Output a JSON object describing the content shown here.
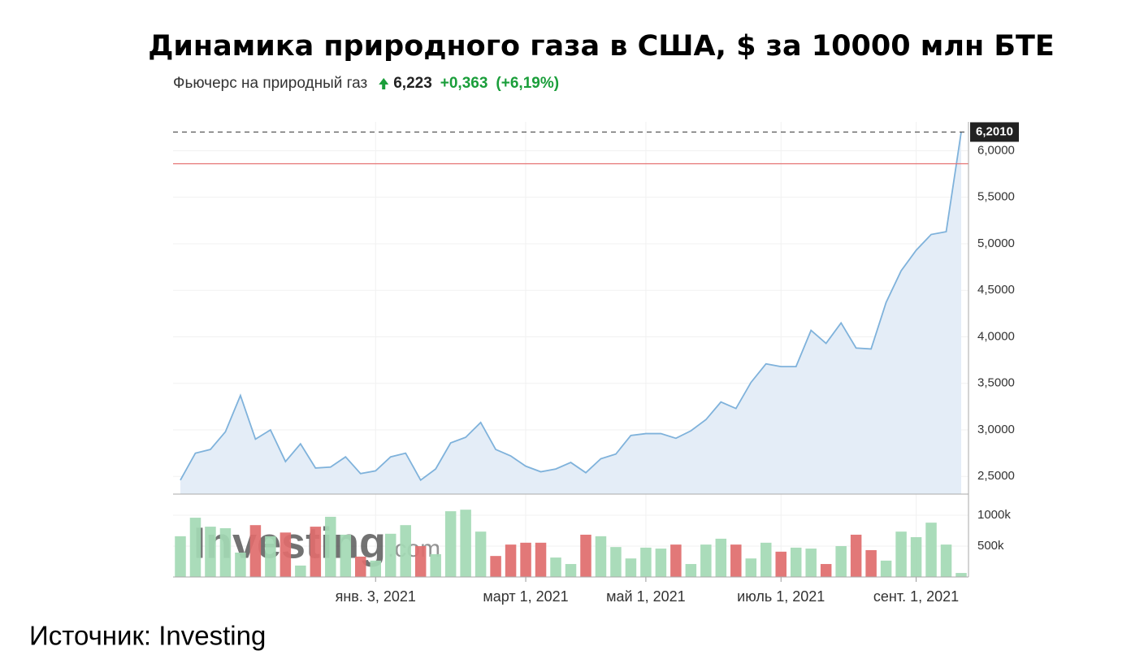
{
  "chart_data": {
    "type": "line",
    "title": "Динамика природного газа в США, $ за 10000 млн БТЕ",
    "quote": {
      "instrument": "Фьючерс на природный газ",
      "price": "6,223",
      "change": "+0,363",
      "change_pct": "(+6,19%)"
    },
    "categories": [
      null,
      null,
      null,
      null,
      null,
      null,
      null,
      null,
      null,
      null,
      null,
      null,
      null,
      "янв. 3, 2021",
      null,
      null,
      null,
      null,
      null,
      null,
      null,
      null,
      null,
      "март 1, 2021",
      null,
      null,
      null,
      null,
      null,
      null,
      null,
      "май 1, 2021",
      null,
      null,
      null,
      null,
      null,
      null,
      null,
      null,
      "июль 1, 2021",
      null,
      null,
      null,
      null,
      null,
      null,
      null,
      null,
      "сент. 1, 2021",
      null,
      null,
      null
    ],
    "series": [
      {
        "color": "#7fb2db",
        "fill": "#e4edf7",
        "values": [
          2.46,
          2.75,
          2.79,
          2.98,
          3.37,
          2.9,
          3.0,
          2.66,
          2.85,
          2.59,
          2.6,
          2.71,
          2.53,
          2.56,
          2.71,
          2.75,
          2.46,
          2.58,
          2.86,
          2.92,
          3.08,
          2.79,
          2.72,
          2.61,
          2.55,
          2.58,
          2.65,
          2.54,
          2.69,
          2.74,
          2.94,
          2.96,
          2.96,
          2.91,
          2.99,
          3.11,
          3.3,
          3.23,
          3.51,
          3.71,
          3.68,
          3.68,
          4.07,
          3.93,
          4.15,
          3.88,
          3.87,
          4.37,
          4.71,
          4.93,
          5.1,
          5.13,
          6.2
        ]
      }
    ],
    "ylim": [
      2.31,
      6.31
    ],
    "yticks": [
      {
        "value": 2.5,
        "label": "2,5000"
      },
      {
        "value": 3,
        "label": "3,0000"
      },
      {
        "value": 3.5,
        "label": "3,5000"
      },
      {
        "value": 4,
        "label": "4,0000"
      },
      {
        "value": 4.5,
        "label": "4,5000"
      },
      {
        "value": 5,
        "label": "5,0000"
      },
      {
        "value": 5.5,
        "label": "5,5000"
      },
      {
        "value": 6,
        "label": "6,0000"
      }
    ],
    "last_value": {
      "value": 6.201,
      "label": "6,2010"
    },
    "reference_line": {
      "value": 5.86,
      "color": "#e57373"
    },
    "grid": true,
    "watermark": [
      "Investing",
      ".com"
    ],
    "volume": {
      "type": "bar",
      "values": [
        660000,
        960000,
        815000,
        790000,
        395000,
        840000,
        660000,
        720000,
        185000,
        815000,
        975000,
        685000,
        330000,
        265000,
        700000,
        840000,
        500000,
        370000,
        1065000,
        1090000,
        735000,
        340000,
        525000,
        555000,
        555000,
        315000,
        210000,
        685000,
        660000,
        485000,
        300000,
        475000,
        460000,
        525000,
        210000,
        525000,
        620000,
        525000,
        300000,
        555000,
        410000,
        475000,
        460000,
        210000,
        500000,
        685000,
        435000,
        265000,
        735000,
        645000,
        880000,
        525000,
        65000
      ],
      "colors": [
        "#a3d9b4",
        "#a3d9b4",
        "#a3d9b4",
        "#a3d9b4",
        "#a3d9b4",
        "#e06c6c",
        "#a3d9b4",
        "#e06c6c",
        "#a3d9b4",
        "#e06c6c",
        "#a3d9b4",
        "#a3d9b4",
        "#e06c6c",
        "#a3d9b4",
        "#a3d9b4",
        "#a3d9b4",
        "#e06c6c",
        "#a3d9b4",
        "#a3d9b4",
        "#a3d9b4",
        "#a3d9b4",
        "#e06c6c",
        "#e06c6c",
        "#e06c6c",
        "#e06c6c",
        "#a3d9b4",
        "#a3d9b4",
        "#e06c6c",
        "#a3d9b4",
        "#a3d9b4",
        "#a3d9b4",
        "#a3d9b4",
        "#a3d9b4",
        "#e06c6c",
        "#a3d9b4",
        "#a3d9b4",
        "#a3d9b4",
        "#e06c6c",
        "#a3d9b4",
        "#a3d9b4",
        "#e06c6c",
        "#a3d9b4",
        "#a3d9b4",
        "#e06c6c",
        "#a3d9b4",
        "#e06c6c",
        "#e06c6c",
        "#a3d9b4",
        "#a3d9b4",
        "#a3d9b4",
        "#a3d9b4",
        "#a3d9b4",
        "#a3d9b4"
      ],
      "ylim": [
        0,
        1290000
      ],
      "yticks": [
        {
          "value": 500000,
          "label": "500k"
        },
        {
          "value": 1000000,
          "label": "1000k"
        }
      ]
    }
  },
  "source": "Источник: Investing"
}
